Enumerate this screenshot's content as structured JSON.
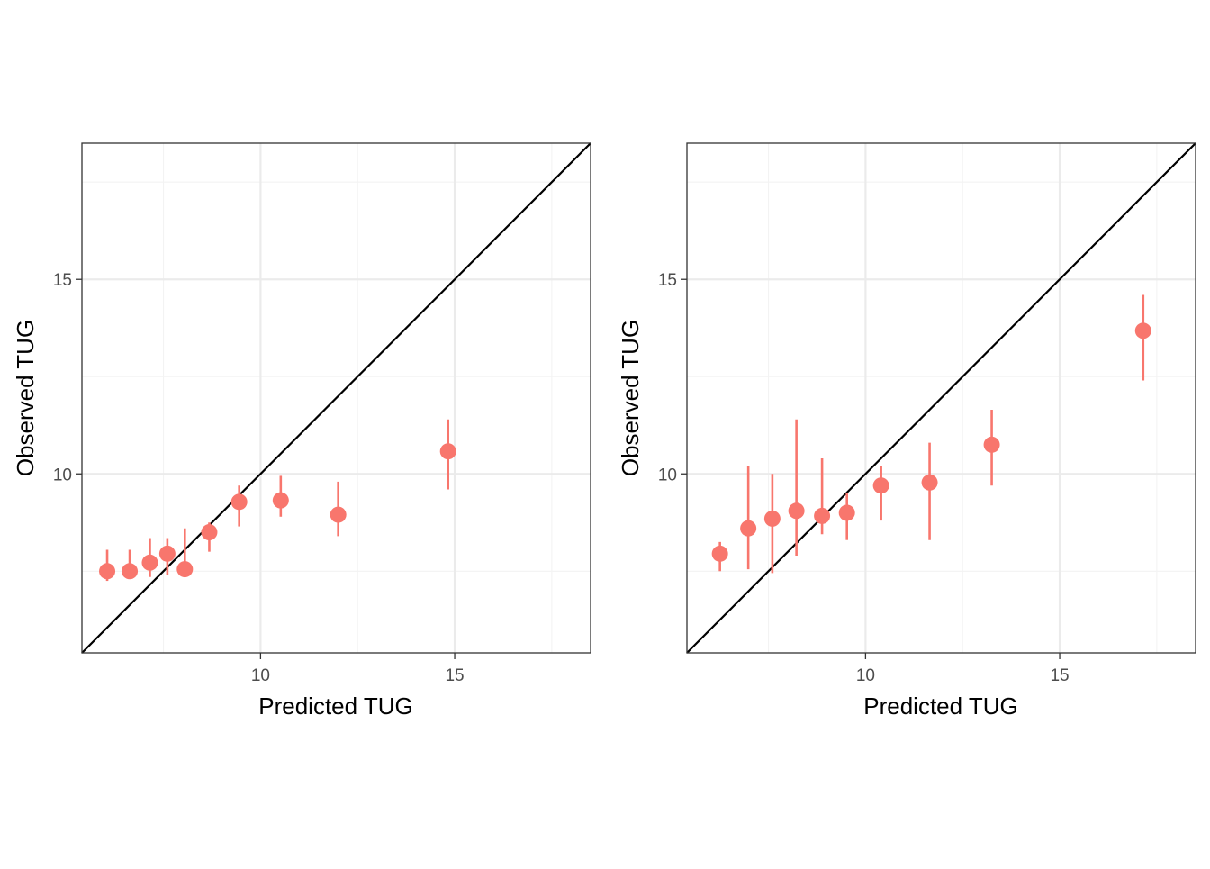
{
  "colors": {
    "point": "#f8766d",
    "identity_line": "#000000"
  },
  "chart_data": [
    {
      "type": "scatter",
      "xlabel": "Predicted TUG",
      "ylabel": "Observed TUG",
      "xlim": [
        5.4,
        18.5
      ],
      "ylim": [
        5.4,
        18.5
      ],
      "x_ticks": [
        10,
        15
      ],
      "y_ticks": [
        10,
        15
      ],
      "x_tick_labels": [
        "10",
        "15"
      ],
      "y_tick_labels": [
        "10",
        "15"
      ],
      "x_minor": [
        7.5,
        12.5,
        17.5
      ],
      "y_minor": [
        7.5,
        12.5,
        17.5
      ],
      "grid": true,
      "reference_line": "y = x",
      "points": [
        {
          "x": 6.05,
          "y": 7.5,
          "lo": 7.25,
          "hi": 8.05
        },
        {
          "x": 6.63,
          "y": 7.5,
          "lo": 7.3,
          "hi": 8.05
        },
        {
          "x": 7.15,
          "y": 7.72,
          "lo": 7.35,
          "hi": 8.35
        },
        {
          "x": 7.6,
          "y": 7.95,
          "lo": 7.4,
          "hi": 8.35
        },
        {
          "x": 8.05,
          "y": 7.55,
          "lo": 7.35,
          "hi": 8.6
        },
        {
          "x": 8.68,
          "y": 8.5,
          "lo": 8.0,
          "hi": 8.75
        },
        {
          "x": 9.45,
          "y": 9.28,
          "lo": 8.65,
          "hi": 9.7
        },
        {
          "x": 10.52,
          "y": 9.32,
          "lo": 8.9,
          "hi": 9.95
        },
        {
          "x": 12.0,
          "y": 8.95,
          "lo": 8.4,
          "hi": 9.8
        },
        {
          "x": 14.83,
          "y": 10.58,
          "lo": 9.6,
          "hi": 11.4
        }
      ]
    },
    {
      "type": "scatter",
      "xlabel": "Predicted TUG",
      "ylabel": "Observed TUG",
      "xlim": [
        5.4,
        18.5
      ],
      "ylim": [
        5.4,
        18.5
      ],
      "x_ticks": [
        10,
        15
      ],
      "y_ticks": [
        10,
        15
      ],
      "x_tick_labels": [
        "10",
        "15"
      ],
      "y_tick_labels": [
        "10",
        "15"
      ],
      "x_minor": [
        7.5,
        12.5,
        17.5
      ],
      "y_minor": [
        7.5,
        12.5,
        17.5
      ],
      "grid": true,
      "reference_line": "y = x",
      "points": [
        {
          "x": 6.25,
          "y": 7.95,
          "lo": 7.5,
          "hi": 8.25
        },
        {
          "x": 6.98,
          "y": 8.6,
          "lo": 7.55,
          "hi": 10.2
        },
        {
          "x": 7.6,
          "y": 8.85,
          "lo": 7.45,
          "hi": 10.0
        },
        {
          "x": 8.22,
          "y": 9.05,
          "lo": 7.9,
          "hi": 11.4
        },
        {
          "x": 8.88,
          "y": 8.92,
          "lo": 8.45,
          "hi": 10.4
        },
        {
          "x": 9.52,
          "y": 9.0,
          "lo": 8.3,
          "hi": 9.5
        },
        {
          "x": 10.4,
          "y": 9.7,
          "lo": 8.8,
          "hi": 10.2
        },
        {
          "x": 11.65,
          "y": 9.78,
          "lo": 8.3,
          "hi": 10.8
        },
        {
          "x": 13.25,
          "y": 10.75,
          "lo": 9.7,
          "hi": 11.65
        },
        {
          "x": 17.15,
          "y": 13.68,
          "lo": 12.4,
          "hi": 14.6
        }
      ]
    }
  ]
}
